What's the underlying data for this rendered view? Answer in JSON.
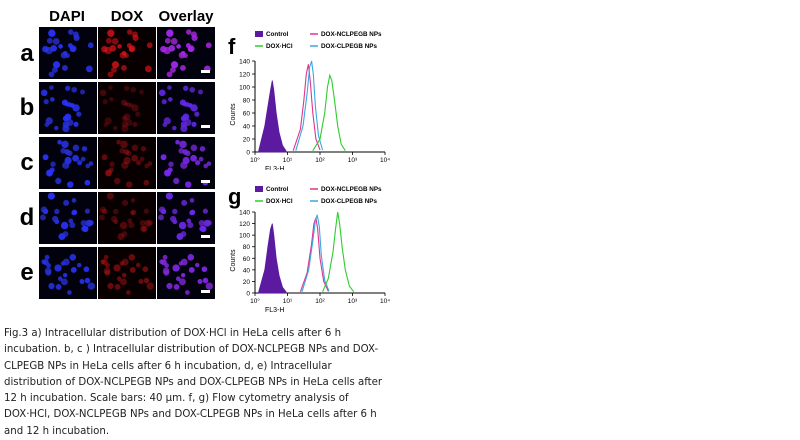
{
  "micro": {
    "columns": [
      "DAPI",
      "DOX",
      "Overlay"
    ],
    "rows": [
      "a",
      "b",
      "c",
      "d",
      "e"
    ],
    "dox_intensity": [
      0.85,
      0.25,
      0.45,
      0.35,
      0.55
    ]
  },
  "flow": [
    {
      "panel": "f",
      "legend": [
        {
          "label": "Control",
          "color": "#5b1aa0"
        },
        {
          "label": "DOX-NCLPEGB NPs",
          "color": "#e0338e"
        },
        {
          "label": "DOX·HCl",
          "color": "#2ecc2e"
        },
        {
          "label": "DOX-CLPEGB NPs",
          "color": "#3aa8e0"
        }
      ],
      "ylabel": "Counts",
      "xlabel": "FL3-H",
      "yticks": [
        "0",
        "20",
        "40",
        "60",
        "80",
        "100",
        "120",
        "140"
      ],
      "xticks": [
        "10°",
        "10¹",
        "10²",
        "10³",
        "10⁴"
      ]
    },
    {
      "panel": "g",
      "legend": [
        {
          "label": "Control",
          "color": "#5b1aa0"
        },
        {
          "label": "DOX-NCLPEGB NPs",
          "color": "#e0338e"
        },
        {
          "label": "DOX·HCl",
          "color": "#2ecc2e"
        },
        {
          "label": "DOX-CLPEGB NPs",
          "color": "#3aa8e0"
        }
      ],
      "ylabel": "Counts",
      "xlabel": "FL3-H",
      "yticks": [
        "0",
        "20",
        "40",
        "60",
        "80",
        "100",
        "120",
        "140"
      ],
      "xticks": [
        "10°",
        "10¹",
        "10²",
        "10³",
        "10⁴"
      ]
    }
  ],
  "caption": {
    "lines": [
      "Fig.3   a) Intracellular distribution of DOX·HCl in HeLa cells after 6 h",
      "incubation. b, c ) Intracellular distribution of DOX-NCLPEGB NPs and DOX-",
      "CLPEGB NPs in HeLa cells after 6 h incubation, d, e) Intracellular",
      "distribution of DOX-NCLPEGB NPs and DOX-CLPEGB NPs in HeLa cells after",
      "12 h incubation. Scale bars: 40 μm. f, g) Flow cytometry analysis of",
      "DOX·HCl, DOX-NCLPEGB NPs and DOX-CLPEGB NPs in HeLa cells after 6 h",
      "and 12 h incubation."
    ]
  },
  "chart_data": [
    {
      "type": "line",
      "title": "f",
      "xlabel": "FL3-H",
      "ylabel": "Counts",
      "x_scale": "log",
      "xlim": [
        1,
        10000
      ],
      "ylim": [
        0,
        140
      ],
      "series": [
        {
          "name": "Control",
          "color": "#5b1aa0",
          "filled": true,
          "x": [
            1.3,
            2,
            2.5,
            3,
            3.4,
            3.8,
            4.5,
            5.5,
            7,
            9
          ],
          "y": [
            2,
            40,
            70,
            95,
            110,
            95,
            60,
            30,
            10,
            2
          ]
        },
        {
          "name": "DOX-NCLPEGB NPs",
          "color": "#e0338e",
          "x": [
            15,
            25,
            32,
            38,
            44,
            50,
            60,
            75,
            100
          ],
          "y": [
            2,
            35,
            80,
            120,
            135,
            110,
            60,
            20,
            3
          ]
        },
        {
          "name": "DOX-CLPEGB NPs",
          "color": "#3aa8e0",
          "x": [
            18,
            30,
            40,
            48,
            55,
            62,
            72,
            90,
            120
          ],
          "y": [
            2,
            40,
            90,
            130,
            140,
            120,
            70,
            25,
            3
          ]
        },
        {
          "name": "DOX·HCl",
          "color": "#2ecc2e",
          "x": [
            60,
            100,
            140,
            170,
            200,
            230,
            280,
            350,
            450,
            600
          ],
          "y": [
            2,
            20,
            60,
            100,
            118,
            110,
            80,
            40,
            12,
            2
          ]
        }
      ]
    },
    {
      "type": "line",
      "title": "g",
      "xlabel": "FL3-H",
      "ylabel": "Counts",
      "x_scale": "log",
      "xlim": [
        1,
        10000
      ],
      "ylim": [
        0,
        140
      ],
      "series": [
        {
          "name": "Control",
          "color": "#5b1aa0",
          "filled": true,
          "x": [
            1.3,
            2,
            2.5,
            3,
            3.4,
            3.8,
            4.5,
            5.5,
            7,
            9
          ],
          "y": [
            2,
            40,
            80,
            110,
            120,
            100,
            60,
            30,
            10,
            2
          ]
        },
        {
          "name": "DOX-NCLPEGB NPs",
          "color": "#e0338e",
          "x": [
            25,
            40,
            55,
            65,
            75,
            85,
            100,
            130,
            180
          ],
          "y": [
            2,
            35,
            85,
            120,
            130,
            110,
            60,
            20,
            3
          ]
        },
        {
          "name": "DOX-CLPEGB NPs",
          "color": "#3aa8e0",
          "x": [
            28,
            45,
            60,
            72,
            82,
            95,
            110,
            140,
            190
          ],
          "y": [
            2,
            40,
            90,
            125,
            135,
            115,
            65,
            22,
            3
          ]
        },
        {
          "name": "DOX·HCl",
          "color": "#2ecc2e",
          "x": [
            120,
            180,
            250,
            300,
            350,
            400,
            480,
            600,
            800,
            1100
          ],
          "y": [
            2,
            25,
            70,
            110,
            140,
            120,
            80,
            40,
            12,
            2
          ]
        }
      ]
    }
  ]
}
